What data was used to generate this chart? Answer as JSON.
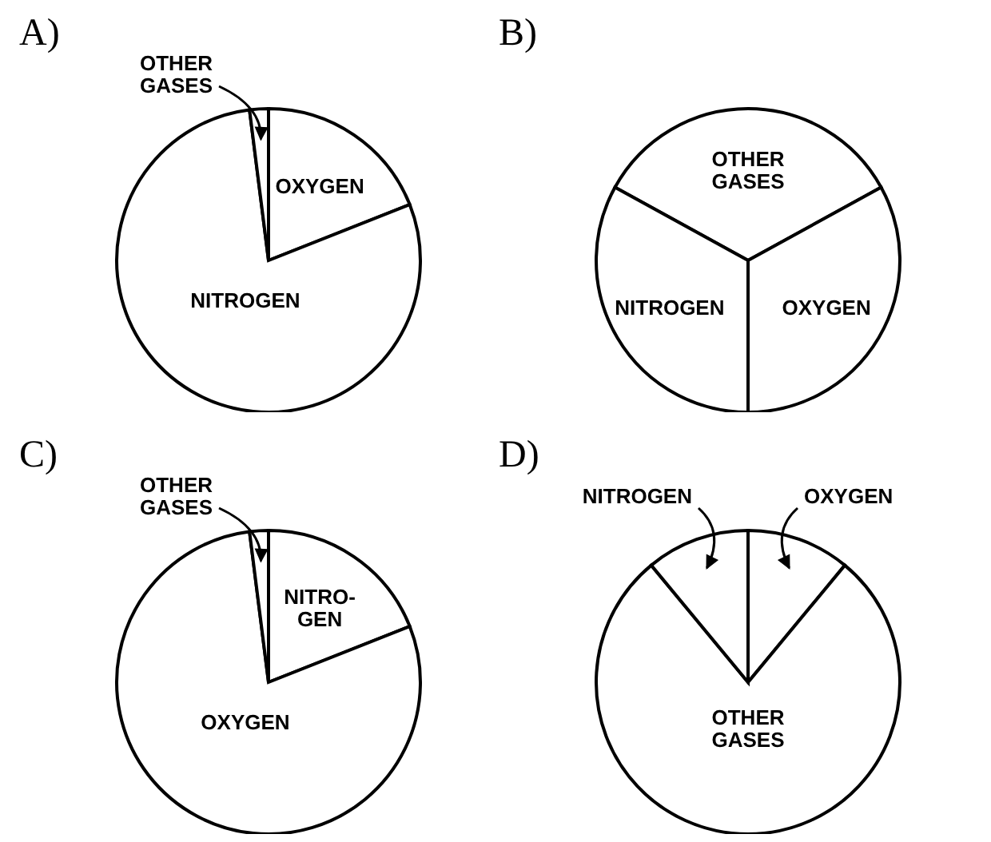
{
  "chart_data": [
    {
      "type": "pie",
      "title": "A)",
      "categories": [
        "OXYGEN",
        "NITROGEN",
        "OTHER\nGASES"
      ],
      "values": [
        19,
        79,
        2
      ],
      "colors": [
        "#ffffff",
        "#ffffff",
        "#ffffff"
      ],
      "legend": false
    },
    {
      "type": "pie",
      "title": "B)",
      "categories": [
        "OTHER\nGASES",
        "OXYGEN",
        "NITROGEN"
      ],
      "values": [
        34,
        33,
        33
      ],
      "colors": [
        "#ffffff",
        "#ffffff",
        "#ffffff"
      ],
      "legend": false
    },
    {
      "type": "pie",
      "title": "C)",
      "categories": [
        "NITRO-\nGEN",
        "OXYGEN",
        "OTHER\nGASES"
      ],
      "values": [
        19,
        79,
        2
      ],
      "colors": [
        "#ffffff",
        "#ffffff",
        "#ffffff"
      ],
      "legend": false
    },
    {
      "type": "pie",
      "title": "D)",
      "categories": [
        "OXYGEN",
        "OTHER\nGASES",
        "NITROGEN"
      ],
      "values": [
        11,
        78,
        11
      ],
      "colors": [
        "#ffffff",
        "#ffffff",
        "#ffffff"
      ],
      "legend": false
    }
  ]
}
